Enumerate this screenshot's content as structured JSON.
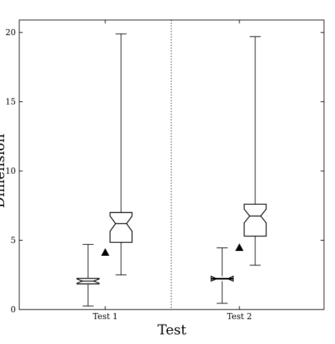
{
  "chart_data": {
    "type": "box",
    "x_label": "Test",
    "y_label": "Dimension",
    "categories": [
      "Test 1",
      "Test 2"
    ],
    "boxes": [
      [
        {
          "min": 0.25,
          "q1": 1.85,
          "notch_low": 1.9,
          "median": 2.05,
          "notch_high": 2.2,
          "q3": 2.25,
          "max": 4.7
        },
        {
          "min": 2.5,
          "q1": 4.85,
          "notch_low": 5.65,
          "median": 6.2,
          "notch_high": 6.75,
          "q3": 7.0,
          "max": 19.9
        }
      ],
      [
        {
          "min": 0.45,
          "q1": 2.2,
          "notch_low": 2.05,
          "median": 2.22,
          "notch_high": 2.4,
          "q3": 2.25,
          "max": 4.45
        },
        {
          "min": 3.2,
          "q1": 5.3,
          "notch_low": 6.25,
          "median": 6.75,
          "notch_high": 7.25,
          "q3": 7.6,
          "max": 19.7
        }
      ]
    ],
    "markers": [
      4.13,
      4.48
    ],
    "ylim": [
      0,
      20.9
    ],
    "yticks": [
      0,
      5,
      10,
      15,
      20
    ]
  }
}
